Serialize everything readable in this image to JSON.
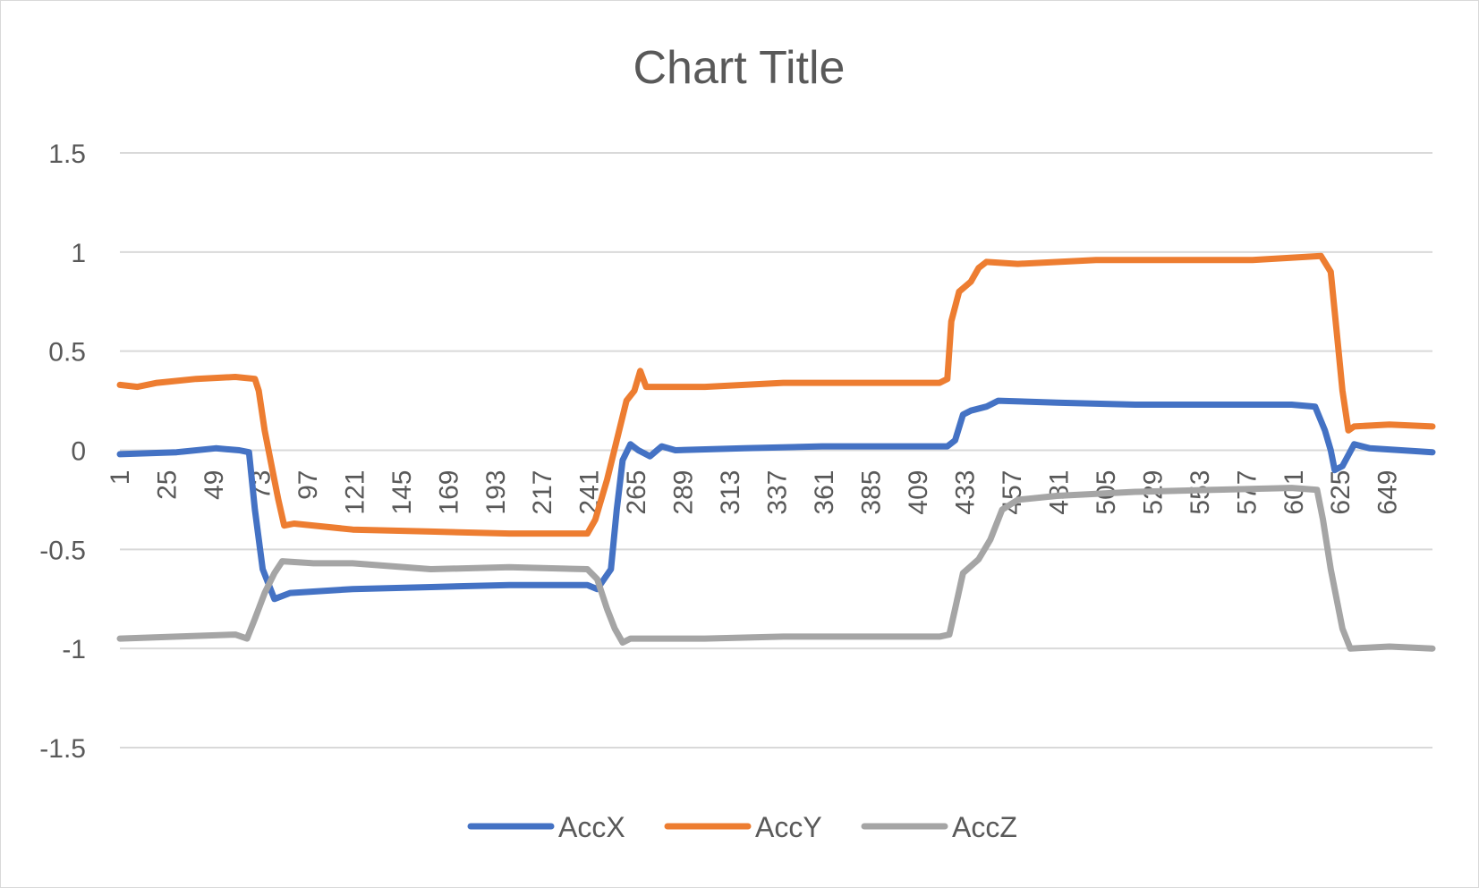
{
  "chart_data": {
    "type": "line",
    "title": "Chart Title",
    "xlabel": "",
    "ylabel": "",
    "ylim": [
      -1.5,
      1.5
    ],
    "y_ticks": [
      1.5,
      1,
      0.5,
      0,
      -0.5,
      -1,
      -1.5
    ],
    "y_tick_labels": [
      "1.5",
      "1",
      "0.5",
      "0",
      "-0.5",
      "-1",
      "-1.5"
    ],
    "x_range": [
      1,
      672
    ],
    "x_tick_labels": [
      "1",
      "25",
      "49",
      "73",
      "97",
      "121",
      "145",
      "169",
      "193",
      "217",
      "241",
      "265",
      "289",
      "313",
      "337",
      "361",
      "385",
      "409",
      "433",
      "457",
      "481",
      "505",
      "529",
      "553",
      "577",
      "601",
      "625",
      "649"
    ],
    "grid": true,
    "legend": "bottom",
    "series": [
      {
        "name": "AccX",
        "color": "#4472C4",
        "points": [
          [
            1,
            -0.02
          ],
          [
            30,
            -0.01
          ],
          [
            50,
            0.01
          ],
          [
            62,
            0.0
          ],
          [
            67,
            -0.01
          ],
          [
            70,
            -0.3
          ],
          [
            74,
            -0.6
          ],
          [
            80,
            -0.75
          ],
          [
            88,
            -0.72
          ],
          [
            120,
            -0.7
          ],
          [
            160,
            -0.69
          ],
          [
            200,
            -0.68
          ],
          [
            240,
            -0.68
          ],
          [
            245,
            -0.7
          ],
          [
            252,
            -0.6
          ],
          [
            255,
            -0.3
          ],
          [
            258,
            -0.05
          ],
          [
            262,
            0.03
          ],
          [
            266,
            0.0
          ],
          [
            272,
            -0.03
          ],
          [
            278,
            0.02
          ],
          [
            285,
            0.0
          ],
          [
            320,
            0.01
          ],
          [
            360,
            0.02
          ],
          [
            400,
            0.02
          ],
          [
            424,
            0.02
          ],
          [
            428,
            0.05
          ],
          [
            432,
            0.18
          ],
          [
            436,
            0.2
          ],
          [
            444,
            0.22
          ],
          [
            450,
            0.25
          ],
          [
            480,
            0.24
          ],
          [
            520,
            0.23
          ],
          [
            560,
            0.23
          ],
          [
            600,
            0.23
          ],
          [
            612,
            0.22
          ],
          [
            617,
            0.1
          ],
          [
            620,
            0.0
          ],
          [
            622,
            -0.1
          ],
          [
            626,
            -0.08
          ],
          [
            632,
            0.03
          ],
          [
            640,
            0.01
          ],
          [
            672,
            -0.01
          ]
        ]
      },
      {
        "name": "AccY",
        "color": "#ED7D31",
        "points": [
          [
            1,
            0.33
          ],
          [
            10,
            0.32
          ],
          [
            20,
            0.34
          ],
          [
            40,
            0.36
          ],
          [
            60,
            0.37
          ],
          [
            70,
            0.36
          ],
          [
            72,
            0.3
          ],
          [
            75,
            0.1
          ],
          [
            79,
            -0.1
          ],
          [
            82,
            -0.25
          ],
          [
            85,
            -0.38
          ],
          [
            90,
            -0.37
          ],
          [
            120,
            -0.4
          ],
          [
            160,
            -0.41
          ],
          [
            200,
            -0.42
          ],
          [
            240,
            -0.42
          ],
          [
            244,
            -0.35
          ],
          [
            250,
            -0.15
          ],
          [
            255,
            0.05
          ],
          [
            260,
            0.25
          ],
          [
            264,
            0.3
          ],
          [
            267,
            0.4
          ],
          [
            270,
            0.32
          ],
          [
            300,
            0.32
          ],
          [
            340,
            0.34
          ],
          [
            380,
            0.34
          ],
          [
            420,
            0.34
          ],
          [
            424,
            0.36
          ],
          [
            426,
            0.65
          ],
          [
            430,
            0.8
          ],
          [
            436,
            0.85
          ],
          [
            440,
            0.92
          ],
          [
            444,
            0.95
          ],
          [
            460,
            0.94
          ],
          [
            500,
            0.96
          ],
          [
            540,
            0.96
          ],
          [
            580,
            0.96
          ],
          [
            615,
            0.98
          ],
          [
            620,
            0.9
          ],
          [
            623,
            0.6
          ],
          [
            626,
            0.3
          ],
          [
            629,
            0.1
          ],
          [
            632,
            0.12
          ],
          [
            650,
            0.13
          ],
          [
            672,
            0.12
          ]
        ]
      },
      {
        "name": "AccZ",
        "color": "#A5A5A5",
        "points": [
          [
            1,
            -0.95
          ],
          [
            30,
            -0.94
          ],
          [
            60,
            -0.93
          ],
          [
            66,
            -0.95
          ],
          [
            70,
            -0.85
          ],
          [
            75,
            -0.72
          ],
          [
            80,
            -0.62
          ],
          [
            84,
            -0.56
          ],
          [
            100,
            -0.57
          ],
          [
            120,
            -0.57
          ],
          [
            160,
            -0.6
          ],
          [
            200,
            -0.59
          ],
          [
            240,
            -0.6
          ],
          [
            245,
            -0.65
          ],
          [
            250,
            -0.8
          ],
          [
            254,
            -0.9
          ],
          [
            258,
            -0.97
          ],
          [
            262,
            -0.95
          ],
          [
            300,
            -0.95
          ],
          [
            340,
            -0.94
          ],
          [
            380,
            -0.94
          ],
          [
            420,
            -0.94
          ],
          [
            425,
            -0.93
          ],
          [
            428,
            -0.8
          ],
          [
            432,
            -0.62
          ],
          [
            440,
            -0.55
          ],
          [
            446,
            -0.45
          ],
          [
            452,
            -0.3
          ],
          [
            460,
            -0.25
          ],
          [
            480,
            -0.23
          ],
          [
            520,
            -0.21
          ],
          [
            560,
            -0.2
          ],
          [
            600,
            -0.19
          ],
          [
            613,
            -0.2
          ],
          [
            616,
            -0.35
          ],
          [
            620,
            -0.6
          ],
          [
            626,
            -0.9
          ],
          [
            630,
            -1.0
          ],
          [
            650,
            -0.99
          ],
          [
            672,
            -1.0
          ]
        ]
      }
    ]
  }
}
